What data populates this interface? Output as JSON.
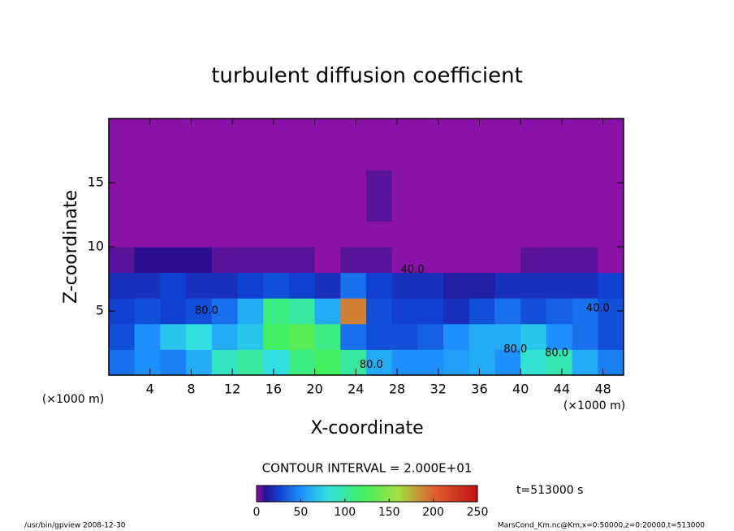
{
  "chart_data": {
    "type": "heatmap",
    "title": "turbulent diffusion coefficient",
    "xlabel": "X-coordinate",
    "ylabel": "Z-coordinate",
    "xunit_left": "(×1000 m)",
    "xunit_right": "(×1000 m)",
    "contour_interval": "CONTOUR INTERVAL = 2.000E+01",
    "time_label": "t=513000 s",
    "footer_left": "/usr/bin/gpview  2008-12-30",
    "footer_right": "MarsCond_Km.nc@Km,x=0:50000,z=0:20000,t=513000",
    "xlim": [
      0,
      50
    ],
    "ylim": [
      0,
      20
    ],
    "xticks": [
      4,
      8,
      12,
      16,
      20,
      24,
      28,
      32,
      36,
      40,
      44,
      48
    ],
    "yticks": [
      5,
      10,
      15
    ],
    "clim": [
      0,
      250
    ],
    "cticks": [
      0,
      50,
      100,
      150,
      200,
      250
    ],
    "colorscale": [
      [
        0,
        "#8a12a8"
      ],
      [
        10,
        "#2a1090"
      ],
      [
        25,
        "#1040d0"
      ],
      [
        50,
        "#1e90ff"
      ],
      [
        80,
        "#30e0e0"
      ],
      [
        120,
        "#40f060"
      ],
      [
        160,
        "#a0e040"
      ],
      [
        200,
        "#e06030"
      ],
      [
        250,
        "#c01010"
      ]
    ],
    "annotations": [
      {
        "text": "80.0",
        "x": 25.5,
        "y": 0.8
      },
      {
        "text": "40.0",
        "x": 29.5,
        "y": 8.2
      },
      {
        "text": "80.0",
        "x": 39.5,
        "y": 2.0
      },
      {
        "text": "80.0",
        "x": 43.5,
        "y": 1.7
      },
      {
        "text": "40.0",
        "x": 47.5,
        "y": 5.2
      },
      {
        "text": "80.0",
        "x": 9.5,
        "y": 5.0
      }
    ],
    "z": [
      [
        40,
        50,
        45,
        60,
        90,
        100,
        80,
        110,
        120,
        100,
        60,
        50,
        50,
        55,
        60,
        50,
        85,
        95,
        60,
        45
      ],
      [
        30,
        50,
        70,
        80,
        60,
        70,
        120,
        130,
        110,
        40,
        30,
        30,
        35,
        50,
        60,
        60,
        70,
        50,
        40,
        30
      ],
      [
        25,
        30,
        25,
        30,
        40,
        60,
        110,
        100,
        60,
        190,
        30,
        25,
        25,
        20,
        30,
        40,
        30,
        35,
        40,
        30
      ],
      [
        20,
        20,
        25,
        20,
        20,
        25,
        30,
        25,
        20,
        40,
        25,
        20,
        20,
        15,
        15,
        20,
        20,
        20,
        20,
        25
      ],
      [
        5,
        10,
        10,
        10,
        5,
        5,
        5,
        5,
        0,
        5,
        5,
        0,
        0,
        0,
        0,
        0,
        5,
        5,
        5,
        0
      ],
      [
        0,
        0,
        0,
        0,
        0,
        0,
        0,
        0,
        0,
        0,
        0,
        0,
        0,
        0,
        0,
        0,
        0,
        0,
        0,
        0
      ],
      [
        0,
        0,
        0,
        0,
        0,
        0,
        0,
        0,
        0,
        0,
        5,
        0,
        0,
        0,
        0,
        0,
        0,
        0,
        0,
        0
      ],
      [
        0,
        0,
        0,
        0,
        0,
        0,
        0,
        0,
        0,
        0,
        5,
        0,
        0,
        0,
        0,
        0,
        0,
        0,
        0,
        0
      ],
      [
        0,
        0,
        0,
        0,
        0,
        0,
        0,
        0,
        0,
        0,
        0,
        0,
        0,
        0,
        0,
        0,
        0,
        0,
        0,
        0
      ],
      [
        0,
        0,
        0,
        0,
        0,
        0,
        0,
        0,
        0,
        0,
        0,
        0,
        0,
        0,
        0,
        0,
        0,
        0,
        0,
        0
      ]
    ]
  }
}
